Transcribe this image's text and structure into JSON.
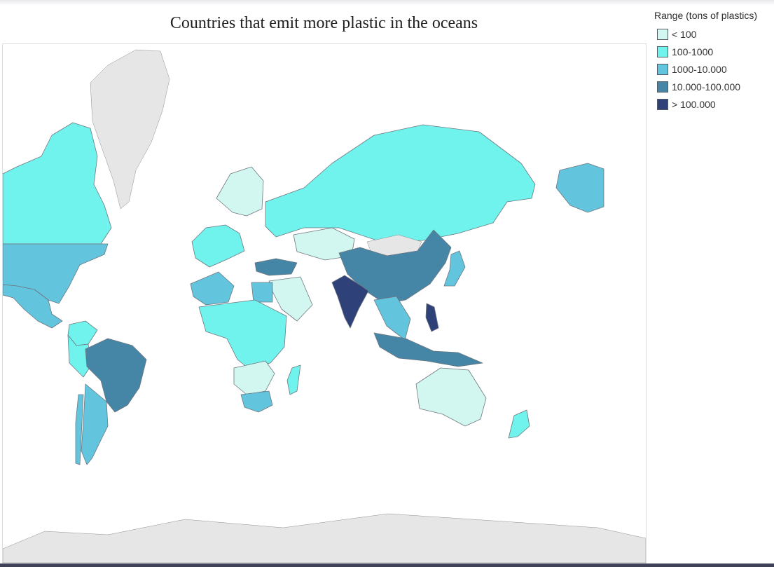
{
  "title": "Countries that emit more plastic in the oceans",
  "legend": {
    "title": "Range (tons of plastics)",
    "items": [
      {
        "label": "< 100",
        "color": "#d2f7f0"
      },
      {
        "label": "100-1000",
        "color": "#6ff3ec"
      },
      {
        "label": "1000-10.000",
        "color": "#62c4dd"
      },
      {
        "label": "10.000-100.000",
        "color": "#4585a6"
      },
      {
        "label": "> 100.000",
        "color": "#2e4279"
      }
    ]
  },
  "no_data_color": "#e6e6e6",
  "regions": [
    {
      "name": "Canada",
      "range": "100-1000"
    },
    {
      "name": "Greenland",
      "range": "no-data"
    },
    {
      "name": "United States",
      "range": "1000-10.000"
    },
    {
      "name": "Alaska",
      "range": "1000-10.000"
    },
    {
      "name": "Mexico",
      "range": "1000-10.000"
    },
    {
      "name": "Colombia",
      "range": "100-1000"
    },
    {
      "name": "Peru",
      "range": "100-1000"
    },
    {
      "name": "Brazil",
      "range": "10.000-100.000"
    },
    {
      "name": "Argentina",
      "range": "1000-10.000"
    },
    {
      "name": "Chile",
      "range": "1000-10.000"
    },
    {
      "name": "Russia",
      "range": "100-1000"
    },
    {
      "name": "Northern Europe",
      "range": "< 100"
    },
    {
      "name": "Western Europe",
      "range": "100-1000"
    },
    {
      "name": "Turkey",
      "range": "10.000-100.000"
    },
    {
      "name": "Kazakhstan",
      "range": "< 100"
    },
    {
      "name": "Mongolia",
      "range": "no-data"
    },
    {
      "name": "China",
      "range": "10.000-100.000"
    },
    {
      "name": "India",
      "range": "> 100.000"
    },
    {
      "name": "Arabian Peninsula",
      "range": "< 100"
    },
    {
      "name": "Algeria",
      "range": "1000-10.000"
    },
    {
      "name": "Egypt",
      "range": "1000-10.000"
    },
    {
      "name": "Nigeria",
      "range": "10.000-100.000"
    },
    {
      "name": "Central Africa",
      "range": "100-1000"
    },
    {
      "name": "Southern Africa",
      "range": "< 100"
    },
    {
      "name": "South Africa",
      "range": "1000-10.000"
    },
    {
      "name": "Madagascar",
      "range": "100-1000"
    },
    {
      "name": "Southeast Asia",
      "range": "1000-10.000"
    },
    {
      "name": "Indonesia",
      "range": "10.000-100.000"
    },
    {
      "name": "Philippines",
      "range": "> 100.000"
    },
    {
      "name": "Japan",
      "range": "1000-10.000"
    },
    {
      "name": "Australia",
      "range": "< 100"
    },
    {
      "name": "New Zealand",
      "range": "100-1000"
    },
    {
      "name": "Antarctica",
      "range": "no-data"
    }
  ]
}
